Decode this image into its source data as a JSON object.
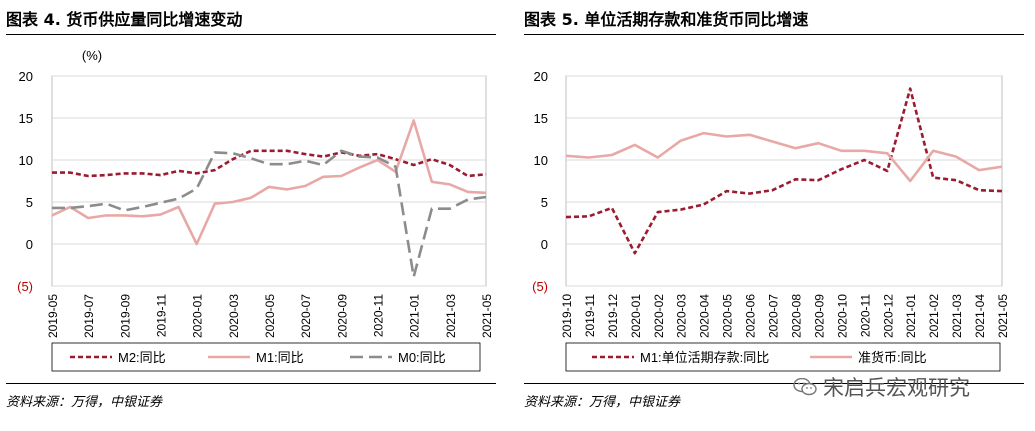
{
  "charts": [
    {
      "title": "图表 4. 货币供应量同比增速变动",
      "source": "资料来源：万得，中银证券"
    },
    {
      "title": "图表 5. 单位活期存款和准货币同比增速",
      "source": "资料来源：万得，中银证券"
    }
  ],
  "watermark": "宋启兵宏观研究",
  "watermark_icon": "wechat-icon",
  "chart_data": [
    {
      "type": "line",
      "title": "图表 4. 货币供应量同比增速变动",
      "unit_label": "(%)",
      "ylim": [
        -5,
        20
      ],
      "yticks": [
        "20",
        "15",
        "10",
        "5",
        "0",
        "(5)"
      ],
      "negative_tick_color": "#c00000",
      "grid": true,
      "legend_position": "bottom",
      "x_tick_labels": [
        "2019-05",
        "2019-07",
        "2019-09",
        "2019-11",
        "2020-01",
        "2020-03",
        "2020-05",
        "2020-07",
        "2020-09",
        "2020-11",
        "2021-01",
        "2021-03",
        "2021-05"
      ],
      "x": [
        "2019-05",
        "2019-06",
        "2019-07",
        "2019-08",
        "2019-09",
        "2019-10",
        "2019-11",
        "2019-12",
        "2020-01",
        "2020-02",
        "2020-03",
        "2020-04",
        "2020-05",
        "2020-06",
        "2020-07",
        "2020-08",
        "2020-09",
        "2020-10",
        "2020-11",
        "2020-12",
        "2021-01",
        "2021-02",
        "2021-03",
        "2021-04",
        "2021-05"
      ],
      "series": [
        {
          "name": "M2:同比",
          "color": "#9b1b30",
          "dash": "short",
          "values": [
            8.5,
            8.5,
            8.1,
            8.2,
            8.4,
            8.4,
            8.2,
            8.7,
            8.4,
            8.8,
            10.1,
            11.1,
            11.1,
            11.1,
            10.7,
            10.4,
            10.9,
            10.5,
            10.7,
            10.1,
            9.4,
            10.1,
            9.4,
            8.1,
            8.3
          ]
        },
        {
          "name": "M1:同比",
          "color": "#e8a9a6",
          "dash": "solid",
          "values": [
            3.4,
            4.4,
            3.1,
            3.4,
            3.4,
            3.3,
            3.5,
            4.4,
            0.0,
            4.8,
            5.0,
            5.5,
            6.8,
            6.5,
            6.9,
            8.0,
            8.1,
            9.1,
            10.0,
            8.6,
            14.7,
            7.4,
            7.1,
            6.2,
            6.1
          ]
        },
        {
          "name": "M0:同比",
          "color": "#8c8c8c",
          "dash": "long",
          "values": [
            4.3,
            4.3,
            4.5,
            4.8,
            4.0,
            4.4,
            4.9,
            5.4,
            6.6,
            10.9,
            10.8,
            10.2,
            9.5,
            9.5,
            9.9,
            9.4,
            11.1,
            10.4,
            10.3,
            9.2,
            -3.9,
            4.2,
            4.2,
            5.3,
            5.6
          ]
        }
      ]
    },
    {
      "type": "line",
      "title": "图表 5. 单位活期存款和准货币同比增速",
      "ylim": [
        -5,
        20
      ],
      "yticks": [
        "20",
        "15",
        "10",
        "5",
        "0",
        "(5)"
      ],
      "negative_tick_color": "#c00000",
      "grid": true,
      "legend_position": "bottom",
      "x_tick_labels": [
        "2019-10",
        "2019-11",
        "2019-12",
        "2020-01",
        "2020-02",
        "2020-03",
        "2020-04",
        "2020-05",
        "2020-06",
        "2020-07",
        "2020-08",
        "2020-09",
        "2020-10",
        "2020-11",
        "2020-12",
        "2021-01",
        "2021-02",
        "2021-03",
        "2021-04",
        "2021-05"
      ],
      "x": [
        "2019-10",
        "2019-11",
        "2019-12",
        "2020-01",
        "2020-02",
        "2020-03",
        "2020-04",
        "2020-05",
        "2020-06",
        "2020-07",
        "2020-08",
        "2020-09",
        "2020-10",
        "2020-11",
        "2020-12",
        "2021-01",
        "2021-02",
        "2021-03",
        "2021-04",
        "2021-05"
      ],
      "series": [
        {
          "name": "M1:单位活期存款:同比",
          "color": "#9b1b30",
          "dash": "short",
          "values": [
            3.2,
            3.3,
            4.3,
            -1.1,
            3.8,
            4.1,
            4.7,
            6.3,
            6.0,
            6.4,
            7.7,
            7.6,
            8.9,
            10.0,
            8.7,
            18.5,
            7.9,
            7.6,
            6.4,
            6.3
          ]
        },
        {
          "name": "准货币:同比",
          "color": "#e8a9a6",
          "dash": "solid",
          "values": [
            10.5,
            10.3,
            10.6,
            11.8,
            10.3,
            12.3,
            13.2,
            12.8,
            13.0,
            12.2,
            11.4,
            12.0,
            11.1,
            11.1,
            10.8,
            7.5,
            11.1,
            10.4,
            8.8,
            9.2
          ]
        }
      ]
    }
  ]
}
